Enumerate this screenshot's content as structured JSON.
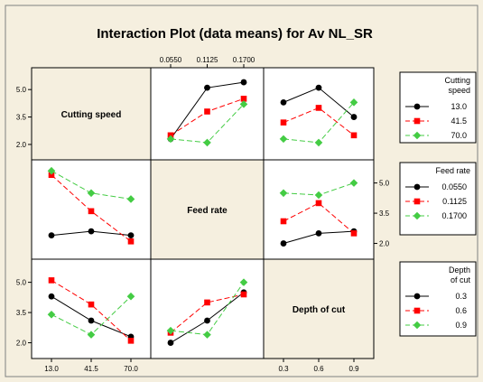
{
  "chart_data": {
    "type": "line",
    "title": "Interaction Plot (data means) for Av NL_SR",
    "factors": [
      {
        "name": "Cutting speed",
        "levels": [
          "13.0",
          "41.5",
          "70.0"
        ],
        "legend_title": [
          "Cutting",
          "speed"
        ]
      },
      {
        "name": "Feed rate",
        "levels": [
          "0.0550",
          "0.1125",
          "0.1700"
        ],
        "legend_title": [
          "Feed rate"
        ]
      },
      {
        "name": "Depth of cut",
        "levels": [
          "0.3",
          "0.6",
          "0.9"
        ],
        "legend_title": [
          "Depth",
          "of cut"
        ]
      }
    ],
    "y_ticks": [
      "2.0",
      "3.5",
      "5.0"
    ],
    "ylim": [
      1.8,
      5.7
    ],
    "legend_placement": "right",
    "series_styles": [
      {
        "color": "#000000",
        "marker": "circle",
        "dash": "solid"
      },
      {
        "color": "#ff0000",
        "marker": "square",
        "dash": "dashed"
      },
      {
        "color": "#44cc44",
        "marker": "diamond",
        "dash": "dashed"
      }
    ],
    "panels": [
      {
        "row": 0,
        "col": 1,
        "trace_factor": "Cutting speed",
        "x_factor": "Feed rate",
        "series": [
          {
            "name": "13.0",
            "values": [
              2.3,
              5.1,
              5.4
            ]
          },
          {
            "name": "41.5",
            "values": [
              2.5,
              3.8,
              4.5
            ]
          },
          {
            "name": "70.0",
            "values": [
              2.3,
              2.1,
              4.2
            ]
          }
        ]
      },
      {
        "row": 0,
        "col": 2,
        "trace_factor": "Cutting speed",
        "x_factor": "Depth of cut",
        "series": [
          {
            "name": "13.0",
            "values": [
              4.3,
              5.1,
              3.5
            ]
          },
          {
            "name": "41.5",
            "values": [
              3.2,
              4.0,
              2.5
            ]
          },
          {
            "name": "70.0",
            "values": [
              2.3,
              2.1,
              4.3
            ]
          }
        ]
      },
      {
        "row": 1,
        "col": 0,
        "trace_factor": "Feed rate",
        "x_factor": "Cutting speed",
        "series": [
          {
            "name": "0.0550",
            "values": [
              2.4,
              2.6,
              2.4
            ]
          },
          {
            "name": "0.1125",
            "values": [
              5.4,
              3.6,
              2.1
            ]
          },
          {
            "name": "0.1700",
            "values": [
              5.6,
              4.5,
              4.2
            ]
          }
        ]
      },
      {
        "row": 1,
        "col": 2,
        "trace_factor": "Feed rate",
        "x_factor": "Depth of cut",
        "series": [
          {
            "name": "0.0550",
            "values": [
              2.0,
              2.5,
              2.6
            ]
          },
          {
            "name": "0.1125",
            "values": [
              3.1,
              4.0,
              2.5
            ]
          },
          {
            "name": "0.1700",
            "values": [
              4.5,
              4.4,
              5.0
            ]
          }
        ]
      },
      {
        "row": 2,
        "col": 0,
        "trace_factor": "Depth of cut",
        "x_factor": "Cutting speed",
        "series": [
          {
            "name": "0.3",
            "values": [
              4.3,
              3.1,
              2.3
            ]
          },
          {
            "name": "0.6",
            "values": [
              5.1,
              3.9,
              2.1
            ]
          },
          {
            "name": "0.9",
            "values": [
              3.4,
              2.4,
              4.3
            ]
          }
        ]
      },
      {
        "row": 2,
        "col": 1,
        "trace_factor": "Depth of cut",
        "x_factor": "Feed rate",
        "series": [
          {
            "name": "0.3",
            "values": [
              2.0,
              3.1,
              4.5
            ]
          },
          {
            "name": "0.6",
            "values": [
              2.5,
              4.0,
              4.4
            ]
          },
          {
            "name": "0.9",
            "values": [
              2.6,
              2.4,
              5.0
            ]
          }
        ]
      }
    ]
  }
}
